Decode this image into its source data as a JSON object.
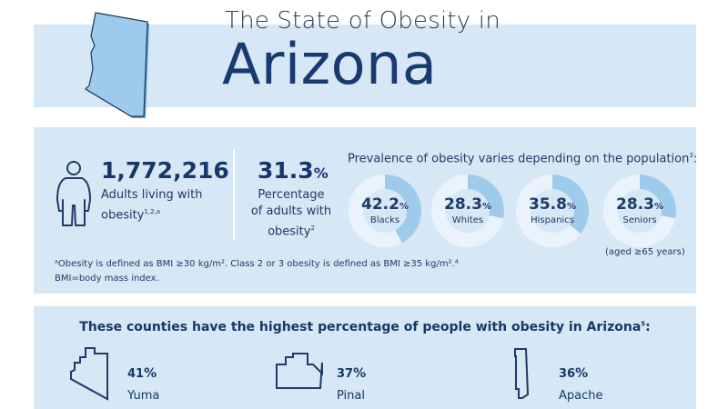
{
  "header": {
    "title_line1": "The State of Obesity in",
    "title_line2": "Arizona"
  },
  "stats": {
    "adults_count": "1,772,216",
    "adults_label_line1": "Adults living with",
    "adults_label_line2": "obesity",
    "adults_sup": "1,2,a",
    "pct_value": "31.3",
    "pct_unit": "%",
    "pct_label_line1": "Percentage",
    "pct_label_line2": "of adults with",
    "pct_label_line3": "obesity",
    "pct_sup": "2",
    "prevalence_title": "Prevalence of obesity varies depending on the population",
    "prevalence_sup": "3",
    "prevalence_colon": ":",
    "seniors_note": "(aged ≥65 years)",
    "footnote_line1": "ᵃObesity is defined as BMI ≥30 kg/m². Class 2 or 3 obesity is defined as BMI ≥35 kg/m².⁴",
    "footnote_line2": "BMI=body mass index."
  },
  "chart_data": {
    "type": "pie",
    "variant": "donut",
    "categories": [
      "Blacks",
      "Whites",
      "Hispanics",
      "Seniors"
    ],
    "values": [
      42.2,
      28.3,
      35.8,
      28.3
    ],
    "value_labels": [
      "42.2",
      "28.3",
      "35.8",
      "28.3"
    ],
    "unit": "%",
    "colors": {
      "fill": "#9ecbeb",
      "track": "#eaf3fb",
      "text": "#17376a"
    }
  },
  "counties": {
    "title": "These counties have the highest percentage of people with obesity in Arizona",
    "title_sup": "5",
    "title_colon": ":",
    "items": [
      {
        "value": "41",
        "unit": "%",
        "name": "Yuma",
        "icon": "yuma-county-outline-icon"
      },
      {
        "value": "37",
        "unit": "%",
        "name": "Pinal",
        "icon": "pinal-county-outline-icon"
      },
      {
        "value": "36",
        "unit": "%",
        "name": "Apache",
        "icon": "apache-county-outline-icon"
      }
    ]
  },
  "colors": {
    "navy": "#17376a",
    "band": "#d6e8f6",
    "state_fill": "#9ecbeb"
  }
}
